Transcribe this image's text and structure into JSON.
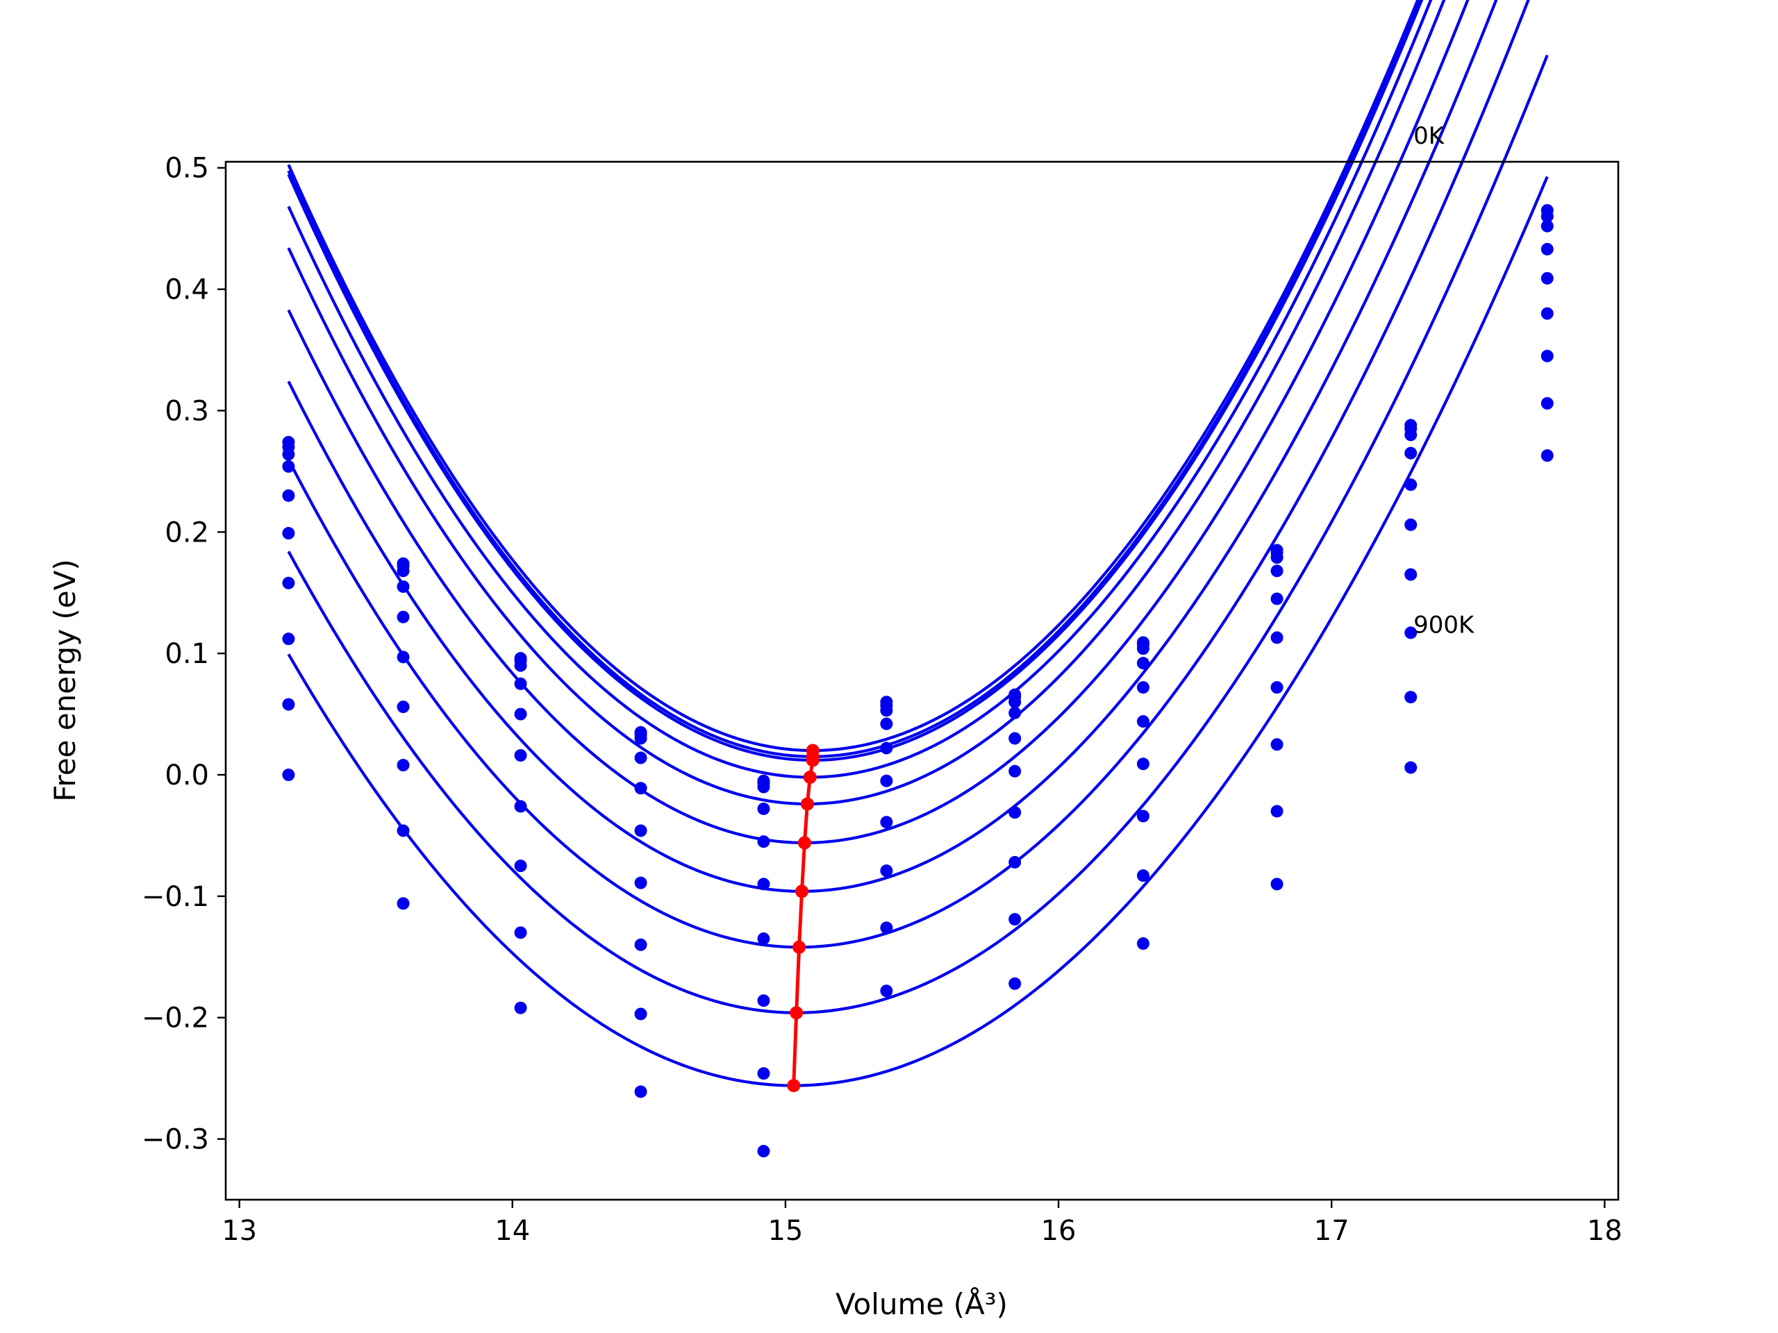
{
  "chart_data": {
    "type": "scatter",
    "title": "",
    "xlabel": "Volume (Å³)",
    "ylabel": "Free energy (eV)",
    "xlim": [
      12.95,
      18.05
    ],
    "ylim": [
      -0.35,
      0.505
    ],
    "x_ticks": [
      13,
      14,
      15,
      16,
      17,
      18
    ],
    "y_ticks": [
      -0.3,
      -0.2,
      -0.1,
      0.0,
      0.1,
      0.2,
      0.3,
      0.4,
      0.5
    ],
    "x_tick_labels": [
      "13",
      "14",
      "15",
      "16",
      "17",
      "18"
    ],
    "y_tick_labels": [
      "−0.3",
      "−0.2",
      "−0.1",
      "0.0",
      "0.1",
      "0.2",
      "0.3",
      "0.4",
      "0.5"
    ],
    "grid": false,
    "legend": "none",
    "colors": {
      "fit": "#0000ee",
      "points": "#0000ee",
      "minima": "#ff0000"
    },
    "annotations": [
      {
        "text": "0K",
        "x": 17.3,
        "y": 0.52
      },
      {
        "text": "900K",
        "x": 17.3,
        "y": 0.117
      }
    ],
    "volumes": [
      13.18,
      13.6,
      14.03,
      14.47,
      14.92,
      15.37,
      15.84,
      16.31,
      16.8,
      17.29,
      17.79
    ],
    "series": [
      {
        "values": [
          0.274,
          0.174,
          0.096,
          0.035,
          -0.005,
          0.06,
          0.066,
          0.109,
          0.185,
          0.288,
          0.465
        ],
        "fit": {
          "v0": 15.1,
          "e0": 0.02,
          "a": 0.1286,
          "c": -0.0012,
          "vmin": 13.18,
          "vmax": 17.79
        }
      },
      {
        "values": [
          0.27,
          0.172,
          0.094,
          0.033,
          -0.007,
          0.057,
          0.064,
          0.107,
          0.183,
          0.285,
          0.46
        ],
        "fit": {
          "v0": 15.1,
          "e0": 0.015,
          "a": 0.1286,
          "c": -0.0012,
          "vmin": 13.18,
          "vmax": 17.79
        }
      },
      {
        "values": [
          0.264,
          0.168,
          0.09,
          0.03,
          -0.01,
          0.053,
          0.06,
          0.104,
          0.179,
          0.28,
          0.452
        ],
        "fit": {
          "v0": 15.1,
          "e0": 0.012,
          "a": 0.1286,
          "c": -0.0012,
          "vmin": 13.18,
          "vmax": 17.79
        }
      },
      {
        "values": [
          0.254,
          0.155,
          0.075,
          0.014,
          -0.028,
          0.042,
          0.051,
          0.092,
          0.168,
          0.265,
          0.433
        ],
        "fit": {
          "v0": 15.09,
          "e0": -0.002,
          "a": 0.1266,
          "c": -0.0012,
          "vmin": 13.18,
          "vmax": 17.79
        }
      },
      {
        "values": [
          0.23,
          0.13,
          0.05,
          -0.011,
          -0.055,
          0.022,
          0.03,
          0.072,
          0.145,
          0.239,
          0.409
        ],
        "fit": {
          "v0": 15.08,
          "e0": -0.024,
          "a": 0.1246,
          "c": -0.0012,
          "vmin": 13.18,
          "vmax": 17.79
        }
      },
      {
        "values": [
          0.199,
          0.097,
          0.016,
          -0.046,
          -0.09,
          -0.005,
          0.003,
          0.044,
          0.113,
          0.206,
          0.38
        ],
        "fit": {
          "v0": 15.07,
          "e0": -0.056,
          "a": 0.1206,
          "c": -0.0012,
          "vmin": 13.18,
          "vmax": 17.79
        }
      },
      {
        "values": [
          0.158,
          0.056,
          -0.026,
          -0.089,
          -0.135,
          -0.039,
          -0.031,
          0.009,
          0.072,
          0.165,
          0.345
        ],
        "fit": {
          "v0": 15.06,
          "e0": -0.096,
          "a": 0.1166,
          "c": -0.0012,
          "vmin": 13.18,
          "vmax": 17.79
        }
      },
      {
        "values": [
          0.112,
          0.008,
          -0.075,
          -0.14,
          -0.186,
          -0.079,
          -0.072,
          -0.034,
          0.025,
          0.117,
          0.306
        ],
        "fit": {
          "v0": 15.05,
          "e0": -0.142,
          "a": 0.1126,
          "c": -0.0012,
          "vmin": 13.18,
          "vmax": 17.79
        }
      },
      {
        "values": [
          0.058,
          -0.046,
          -0.13,
          -0.197,
          -0.246,
          -0.126,
          -0.119,
          -0.083,
          -0.03,
          0.064,
          0.263
        ],
        "fit": {
          "v0": 15.04,
          "e0": -0.196,
          "a": 0.1076,
          "c": -0.0012,
          "vmin": 13.18,
          "vmax": 17.79
        }
      },
      {
        "values": [
          0.0,
          -0.106,
          -0.192,
          -0.261,
          -0.31,
          -0.178,
          -0.172,
          -0.139,
          -0.09,
          0.006,
          null
        ],
        "fit": {
          "v0": 15.03,
          "e0": -0.256,
          "a": 0.1016,
          "c": -0.0012,
          "vmin": 13.18,
          "vmax": 17.79
        }
      }
    ],
    "minima": {
      "x": [
        15.1,
        15.1,
        15.1,
        15.09,
        15.08,
        15.07,
        15.06,
        15.05,
        15.04,
        15.03
      ],
      "y": [
        0.02,
        0.015,
        0.012,
        -0.002,
        -0.024,
        -0.056,
        -0.096,
        -0.142,
        -0.196,
        -0.256
      ]
    }
  }
}
